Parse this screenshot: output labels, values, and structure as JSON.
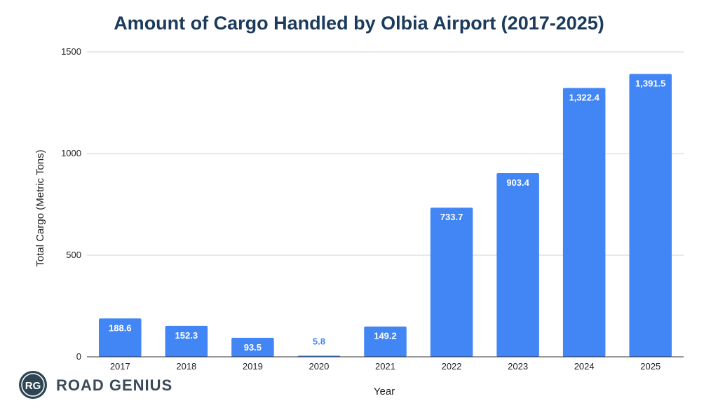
{
  "chart_data": {
    "type": "bar",
    "title": "Amount of Cargo Handled by Olbia Airport (2017-2025)",
    "xlabel": "Year",
    "ylabel": "Total Cargo (Metric Tons)",
    "ylim": [
      0,
      1500
    ],
    "yticks": [
      "0",
      "500",
      "1000",
      "1500"
    ],
    "categories": [
      "2017",
      "2018",
      "2019",
      "2020",
      "2021",
      "2022",
      "2023",
      "2024",
      "2025"
    ],
    "values": [
      188.6,
      152.3,
      93.5,
      5.8,
      149.2,
      733.7,
      903.4,
      1322.4,
      1391.5
    ],
    "data_labels": [
      "188.6",
      "152.3",
      "93.5",
      "5.8",
      "149.2",
      "733.7",
      "903.4",
      "1,322.4",
      "1,391.5"
    ],
    "bar_color": "#4285f4",
    "grid": true
  },
  "brand": {
    "logo_initials": "RG",
    "name": "ROAD GENIUS"
  }
}
